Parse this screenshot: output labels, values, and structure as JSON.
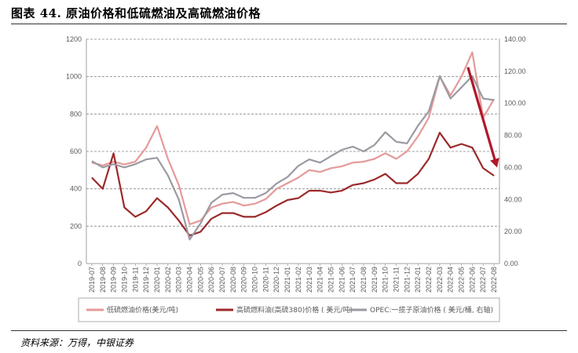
{
  "header": {
    "title": "图表 44. 原油价格和低硫燃油及高硫燃油价格"
  },
  "footer": {
    "source": "资料来源：万得，中银证券"
  },
  "colors": {
    "low_sulfur": "#e59a9a",
    "high_sulfur": "#9c2a2a",
    "opec": "#9a9aa2",
    "arrow": "#b0182a",
    "grid": "#888888"
  },
  "chart_data": {
    "type": "line",
    "title": "",
    "xlabel": "",
    "ylabel": "",
    "ylim": [
      0,
      1200
    ],
    "y_ticks": [
      "0",
      "200",
      "400",
      "600",
      "800",
      "1000",
      "1200"
    ],
    "y2lim": [
      0,
      140
    ],
    "y2_ticks": [
      "0.00",
      "20.00",
      "40.00",
      "60.00",
      "80.00",
      "100.00",
      "120.00",
      "140.00"
    ],
    "grid": "horizontal dashed",
    "legend_position": "bottom",
    "x_labels": [
      "2019-07",
      "2019-08",
      "2019-09",
      "2019-10",
      "2019-11",
      "2019-12",
      "2020-01",
      "2020-02",
      "2020-03",
      "2020-04",
      "2020-05",
      "2020-06",
      "2020-07",
      "2020-08",
      "2020-09",
      "2020-10",
      "2020-11",
      "2020-12",
      "2021-01",
      "2021-02",
      "2021-03",
      "2021-04",
      "2021-05",
      "2021-06",
      "2021-07",
      "2021-08",
      "2021-09",
      "2021-10",
      "2021-11",
      "2021-12",
      "2022-01",
      "2022-02",
      "2022-03",
      "2022-04",
      "2022-05",
      "2022-06",
      "2022-07",
      "2022-08"
    ],
    "series": [
      {
        "name": "低硫燃油价格(美元/吨)",
        "axis": "left",
        "values": [
          540,
          525,
          545,
          530,
          545,
          620,
          735,
          560,
          420,
          210,
          230,
          300,
          320,
          330,
          310,
          320,
          345,
          400,
          430,
          460,
          500,
          490,
          510,
          520,
          540,
          545,
          560,
          590,
          560,
          600,
          680,
          780,
          1000,
          900,
          1000,
          1130,
          780,
          880
        ]
      },
      {
        "name": "高硫燃料油(高硫380)价格 ( 美元/吨)",
        "axis": "left",
        "values": [
          460,
          400,
          590,
          300,
          250,
          280,
          350,
          300,
          230,
          150,
          170,
          240,
          270,
          270,
          250,
          250,
          275,
          310,
          340,
          350,
          390,
          390,
          380,
          390,
          420,
          430,
          450,
          480,
          430,
          430,
          480,
          560,
          700,
          620,
          640,
          620,
          510,
          470
        ]
      },
      {
        "name": "OPEC:一揽子原油价格 ( 美元/桶, 右轴)",
        "axis": "right",
        "values": [
          64,
          60,
          62,
          60,
          62,
          65,
          66,
          55,
          40,
          15,
          25,
          38,
          43,
          44,
          41,
          41,
          44,
          50,
          54,
          61,
          65,
          63,
          67,
          71,
          73,
          70,
          74,
          82,
          76,
          75,
          86,
          95,
          117,
          103,
          110,
          117,
          103,
          102
        ]
      }
    ],
    "annotations": [
      "red arrow from about 2022-06 high down toward 2022-08 low"
    ]
  }
}
